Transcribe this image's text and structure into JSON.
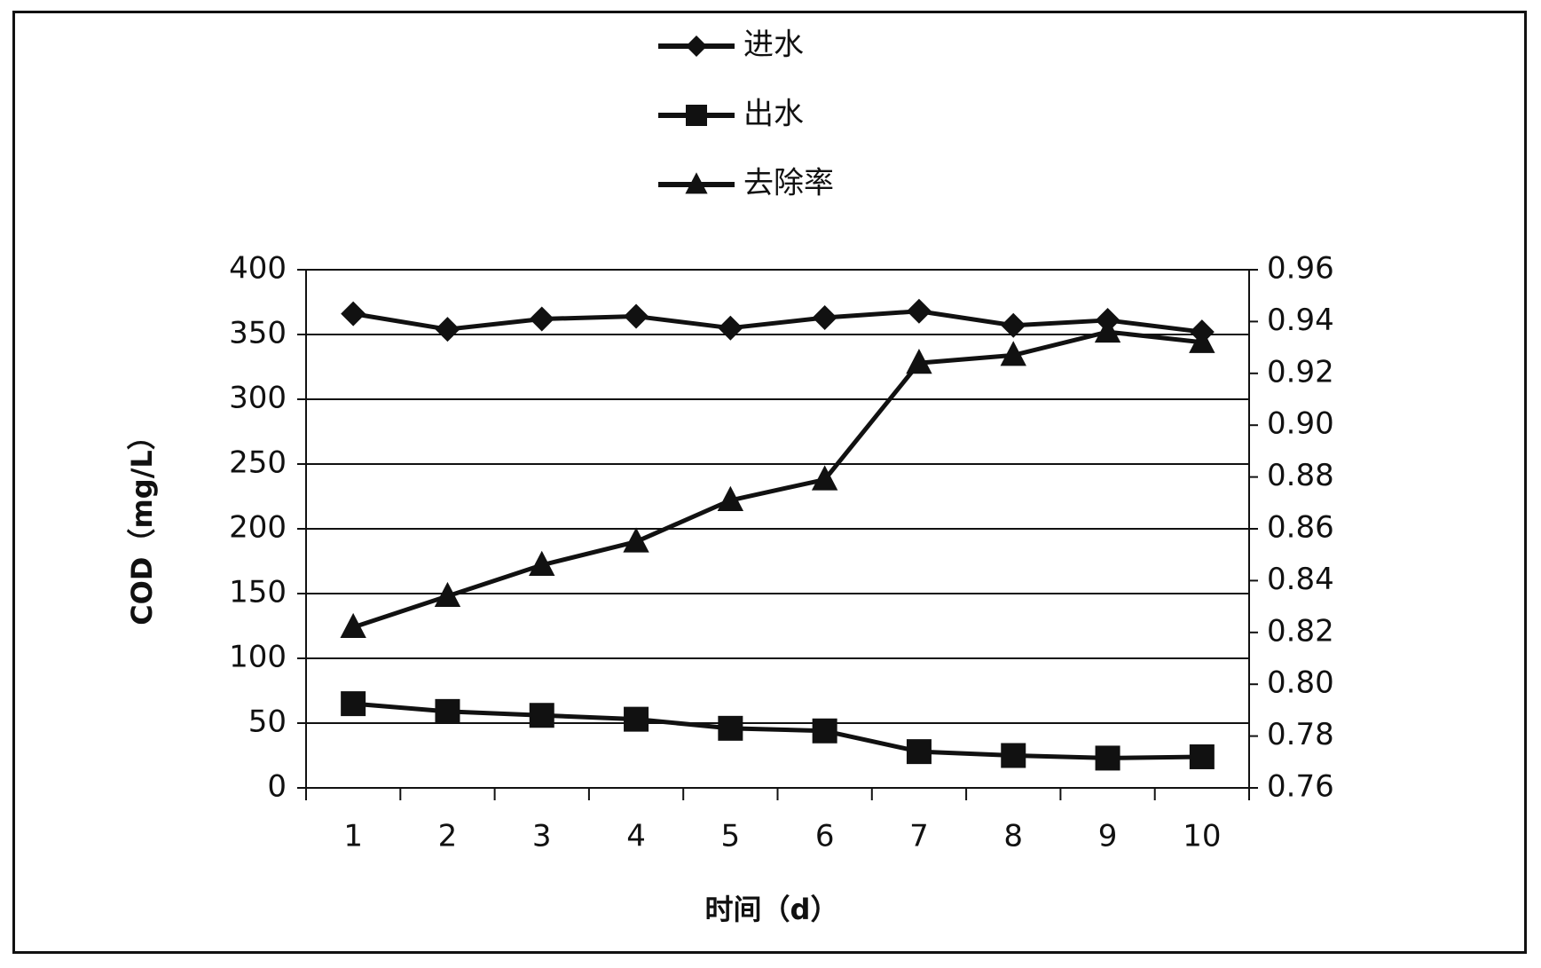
{
  "chart_data": {
    "type": "line",
    "title": "",
    "xlabel": "时间（d）",
    "ylabel": "COD（mg/L）",
    "categories": [
      "1",
      "2",
      "3",
      "4",
      "5",
      "6",
      "7",
      "8",
      "9",
      "10"
    ],
    "ylim": [
      0,
      400
    ],
    "y_ticks": [
      "0",
      "50",
      "100",
      "150",
      "200",
      "250",
      "300",
      "350",
      "400"
    ],
    "y2lim": [
      0.76,
      0.96
    ],
    "y2_ticks": [
      "0.76",
      "0.78",
      "0.80",
      "0.82",
      "0.84",
      "0.86",
      "0.88",
      "0.90",
      "0.92",
      "0.94",
      "0.96"
    ],
    "grid": true,
    "legend_position": "top",
    "series": [
      {
        "name": "进水",
        "axis": "left",
        "marker": "diamond",
        "values": [
          366,
          354,
          362,
          364,
          355,
          363,
          368,
          357,
          361,
          352
        ]
      },
      {
        "name": "出水",
        "axis": "left",
        "marker": "square",
        "values": [
          65,
          59,
          56,
          53,
          46,
          44,
          28,
          25,
          23,
          24
        ]
      },
      {
        "name": "去除率",
        "axis": "right",
        "marker": "triangle",
        "values": [
          0.822,
          0.834,
          0.846,
          0.855,
          0.871,
          0.879,
          0.924,
          0.927,
          0.936,
          0.932
        ]
      }
    ]
  }
}
